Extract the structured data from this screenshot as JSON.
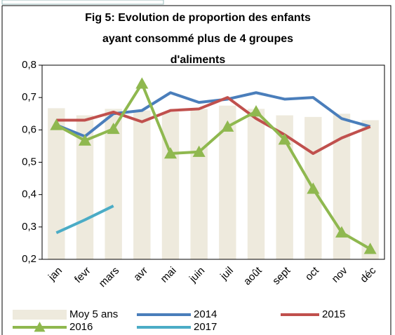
{
  "chart_data": {
    "type": "combo",
    "title": [
      "Fig 5: Evolution de proportion des enfants",
      "ayant consommé plus de 4 groupes",
      "d'aliments"
    ],
    "categories": [
      "jan",
      "fevr",
      "mars",
      "avr",
      "mai",
      "juin",
      "juil",
      "août",
      "sept",
      "oct",
      "nov",
      "déc"
    ],
    "series": [
      {
        "name": "Moy 5 ans",
        "type": "bar",
        "color": "#eeeadd",
        "values": [
          0.667,
          0.645,
          0.665,
          0.66,
          0.655,
          0.665,
          0.675,
          0.665,
          0.645,
          0.64,
          0.65,
          0.63
        ]
      },
      {
        "name": "2014",
        "type": "line",
        "color": "#4a7ebb",
        "values": [
          0.615,
          0.58,
          0.65,
          0.66,
          0.715,
          0.685,
          0.695,
          0.715,
          0.695,
          0.7,
          0.635,
          0.61
        ]
      },
      {
        "name": "2015",
        "type": "line",
        "color": "#c0504d",
        "values": [
          0.63,
          0.63,
          0.655,
          0.625,
          0.66,
          0.665,
          0.7,
          0.635,
          0.585,
          0.527,
          0.575,
          0.61
        ]
      },
      {
        "name": "2016",
        "type": "line",
        "marker": "triangle",
        "color": "#8fb84f",
        "values": [
          0.615,
          0.567,
          0.603,
          0.743,
          0.527,
          0.532,
          0.61,
          0.657,
          0.57,
          0.418,
          0.283,
          0.232
        ]
      },
      {
        "name": "2017",
        "type": "line",
        "color": "#4bacc6",
        "values": [
          0.282,
          0.322,
          0.365,
          null,
          null,
          null,
          null,
          null,
          null,
          null,
          null,
          null
        ]
      }
    ],
    "ylim": [
      0.2,
      0.8
    ],
    "yticks": [
      {
        "value": 0.2,
        "label": "0,2"
      },
      {
        "value": 0.3,
        "label": "0,3"
      },
      {
        "value": 0.4,
        "label": "0,4"
      },
      {
        "value": 0.5,
        "label": "0,5"
      },
      {
        "value": 0.6,
        "label": "0,6"
      },
      {
        "value": 0.7,
        "label": "0,7"
      },
      {
        "value": 0.8,
        "label": "0,8"
      }
    ],
    "grid": false
  }
}
